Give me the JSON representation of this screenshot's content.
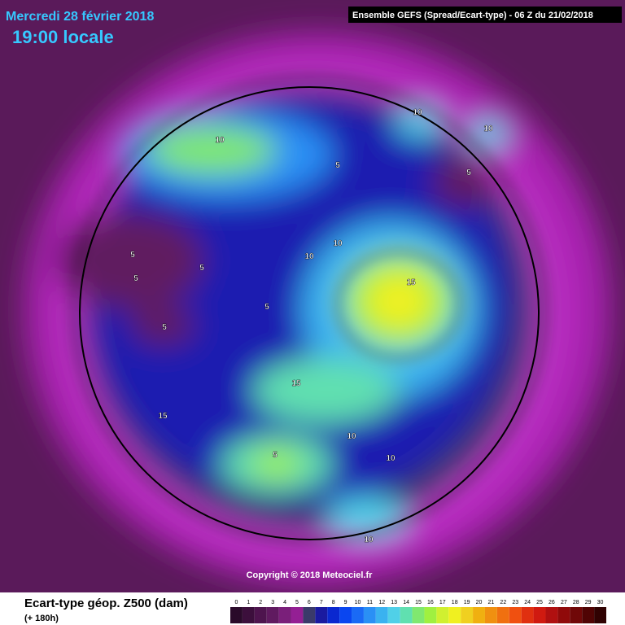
{
  "header": {
    "date": "Mercredi 28 février 2018",
    "time": "19:00 locale",
    "run": "Ensemble GEFS  (Spread/Ecart-type) - 06 Z du 21/02/2018"
  },
  "copyright": "Copyright © 2018 Meteociel.fr",
  "contour_labels": [
    10,
    10,
    10,
    5,
    5,
    10,
    10,
    5,
    5,
    5,
    5,
    5,
    15,
    15,
    15,
    10,
    5,
    10,
    10
  ],
  "legend": {
    "title": "Ecart-type géop. Z500 (dam)",
    "subtitle": "(+ 180h)",
    "ticks": [
      0,
      1,
      2,
      3,
      4,
      5,
      6,
      7,
      8,
      9,
      10,
      11,
      12,
      13,
      14,
      15,
      16,
      17,
      18,
      19,
      20,
      21,
      22,
      23,
      24,
      25,
      26,
      27,
      28,
      29,
      30
    ],
    "colors": [
      "#2a0a2a",
      "#3c0f3c",
      "#4e144e",
      "#601a60",
      "#7a1f7a",
      "#941f94",
      "#3a3a6a",
      "#1a1aa0",
      "#0a28d0",
      "#0a46f0",
      "#1a6af5",
      "#2a90f5",
      "#3ab2f0",
      "#50d0e8",
      "#60e0b0",
      "#80e870",
      "#a0f040",
      "#d0f030",
      "#f0f020",
      "#f0d020",
      "#f0b010",
      "#f09010",
      "#f07010",
      "#f05010",
      "#e03010",
      "#d01a10",
      "#b01010",
      "#900a0a",
      "#700808",
      "#500404",
      "#300202"
    ]
  }
}
